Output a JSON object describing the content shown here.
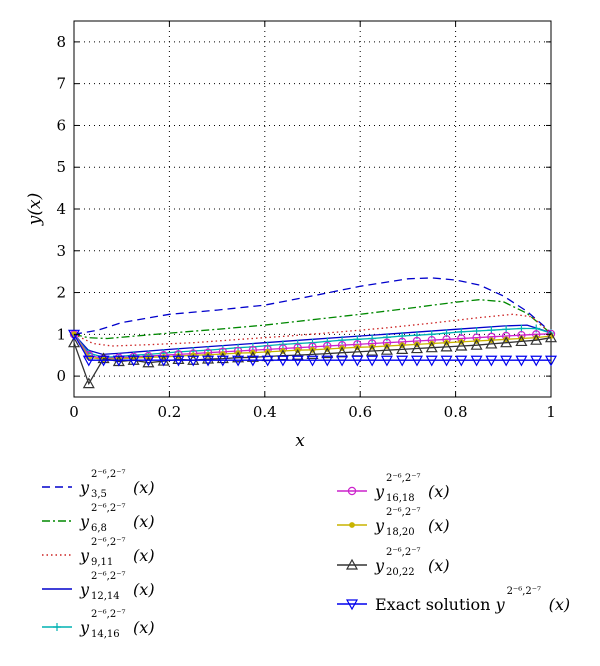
{
  "chart_data": {
    "type": "line",
    "xlabel": "x",
    "ylabel": "y(x)",
    "xlim": [
      0,
      1
    ],
    "ylim": [
      -0.5,
      8.5
    ],
    "xticks": [
      0,
      0.2,
      0.4,
      0.6,
      0.8,
      1
    ],
    "xtick_labels": [
      "0",
      "0.2",
      "0.4",
      "0.6",
      "0.8",
      "1"
    ],
    "yticks": [
      0,
      1,
      2,
      3,
      4,
      5,
      6,
      7,
      8
    ],
    "ytick_labels": [
      "0",
      "1",
      "2",
      "3",
      "4",
      "5",
      "6",
      "7",
      "8"
    ],
    "grid": true,
    "legend_position": "below",
    "series": [
      {
        "label_base": "y",
        "label_sup": "2⁻⁶,2⁻⁷",
        "label_sub": "3,5",
        "label_arg": "(x)",
        "color": "#0000cc",
        "dash": "8 5",
        "marker": "none",
        "x": [
          0,
          0.05,
          0.1,
          0.2,
          0.3,
          0.4,
          0.5,
          0.6,
          0.7,
          0.75,
          0.8,
          0.85,
          0.9,
          0.95,
          1
        ],
        "y": [
          1.0,
          1.1,
          1.28,
          1.48,
          1.58,
          1.7,
          1.92,
          2.15,
          2.33,
          2.35,
          2.3,
          2.18,
          1.92,
          1.55,
          1.05
        ]
      },
      {
        "label_base": "y",
        "label_sup": "2⁻⁶,2⁻⁷",
        "label_sub": "6,8",
        "label_arg": "(x)",
        "color": "#008800",
        "dash": "8 3 2 3",
        "marker": "none",
        "x": [
          0,
          0.03,
          0.07,
          0.12,
          0.2,
          0.3,
          0.4,
          0.5,
          0.6,
          0.7,
          0.8,
          0.85,
          0.9,
          0.95,
          1
        ],
        "y": [
          1.0,
          0.92,
          0.9,
          0.95,
          1.03,
          1.12,
          1.22,
          1.35,
          1.48,
          1.62,
          1.77,
          1.83,
          1.78,
          1.5,
          1.02
        ]
      },
      {
        "label_base": "y",
        "label_sup": "2⁻⁶,2⁻⁷",
        "label_sub": "9,11",
        "label_arg": "(x)",
        "color": "#cc2222",
        "dash": "1.5 3",
        "marker": "none",
        "x": [
          0,
          0.04,
          0.08,
          0.15,
          0.25,
          0.35,
          0.45,
          0.55,
          0.65,
          0.75,
          0.85,
          0.92,
          0.96,
          1
        ],
        "y": [
          1.0,
          0.78,
          0.72,
          0.75,
          0.8,
          0.88,
          0.96,
          1.05,
          1.15,
          1.27,
          1.4,
          1.48,
          1.42,
          1.02
        ]
      },
      {
        "label_base": "y",
        "label_sup": "2⁻⁶,2⁻⁷",
        "label_sub": "12,14",
        "label_arg": "(x)",
        "color": "#0000cc",
        "dash": "",
        "marker": "none",
        "x": [
          0,
          0.03,
          0.06,
          0.1,
          0.2,
          0.3,
          0.4,
          0.5,
          0.6,
          0.7,
          0.8,
          0.9,
          0.95,
          1
        ],
        "y": [
          1.0,
          0.62,
          0.52,
          0.55,
          0.64,
          0.72,
          0.8,
          0.88,
          0.96,
          1.04,
          1.12,
          1.2,
          1.22,
          1.04
        ]
      },
      {
        "label_base": "y",
        "label_sup": "2⁻⁶,2⁻⁷",
        "label_sub": "14,16",
        "label_arg": "(x)",
        "color": "#00b2b2",
        "dash": "",
        "marker": "plus",
        "x": [
          0,
          0.031,
          0.062,
          0.094,
          0.125,
          0.156,
          0.188,
          0.219,
          0.25,
          0.281,
          0.312,
          0.344,
          0.375,
          0.406,
          0.438,
          0.469,
          0.5,
          0.531,
          0.562,
          0.594,
          0.625,
          0.656,
          0.688,
          0.719,
          0.75,
          0.781,
          0.812,
          0.844,
          0.875,
          0.906,
          0.938,
          0.969,
          1
        ],
        "y": [
          1.0,
          0.55,
          0.45,
          0.47,
          0.5,
          0.52,
          0.55,
          0.58,
          0.6,
          0.62,
          0.65,
          0.68,
          0.7,
          0.73,
          0.76,
          0.78,
          0.8,
          0.83,
          0.86,
          0.88,
          0.9,
          0.93,
          0.96,
          0.98,
          1.0,
          1.03,
          1.06,
          1.08,
          1.1,
          1.12,
          1.14,
          1.14,
          1.03
        ]
      },
      {
        "label_base": "y",
        "label_sup": "2⁻⁶,2⁻⁷",
        "label_sub": "16,18",
        "label_arg": "(x)",
        "color": "#cc22cc",
        "dash": "",
        "marker": "circle",
        "x": [
          0,
          0.031,
          0.062,
          0.094,
          0.125,
          0.156,
          0.188,
          0.219,
          0.25,
          0.281,
          0.312,
          0.344,
          0.375,
          0.406,
          0.438,
          0.469,
          0.5,
          0.531,
          0.562,
          0.594,
          0.625,
          0.656,
          0.688,
          0.719,
          0.75,
          0.781,
          0.812,
          0.844,
          0.875,
          0.906,
          0.938,
          0.969,
          1
        ],
        "y": [
          1.0,
          0.5,
          0.42,
          0.44,
          0.46,
          0.48,
          0.5,
          0.52,
          0.54,
          0.56,
          0.58,
          0.6,
          0.62,
          0.64,
          0.66,
          0.68,
          0.7,
          0.72,
          0.74,
          0.76,
          0.78,
          0.8,
          0.82,
          0.84,
          0.86,
          0.88,
          0.9,
          0.92,
          0.94,
          0.96,
          0.98,
          1.0,
          1.01
        ]
      },
      {
        "label_base": "y",
        "label_sup": "2⁻⁶,2⁻⁷",
        "label_sub": "18,20",
        "label_arg": "(x)",
        "color": "#c8b400",
        "dash": "",
        "marker": "dot",
        "x": [
          0,
          0.031,
          0.062,
          0.094,
          0.125,
          0.156,
          0.188,
          0.219,
          0.25,
          0.281,
          0.312,
          0.344,
          0.375,
          0.406,
          0.438,
          0.469,
          0.5,
          0.531,
          0.562,
          0.594,
          0.625,
          0.656,
          0.688,
          0.719,
          0.75,
          0.781,
          0.812,
          0.844,
          0.875,
          0.906,
          0.938,
          0.969,
          1
        ],
        "y": [
          1.0,
          0.45,
          0.4,
          0.42,
          0.43,
          0.45,
          0.46,
          0.48,
          0.5,
          0.51,
          0.53,
          0.55,
          0.56,
          0.58,
          0.6,
          0.62,
          0.63,
          0.65,
          0.67,
          0.69,
          0.7,
          0.72,
          0.74,
          0.76,
          0.78,
          0.8,
          0.82,
          0.84,
          0.86,
          0.88,
          0.9,
          0.92,
          0.96
        ]
      },
      {
        "label_base": "y",
        "label_sup": "2⁻⁶,2⁻⁷",
        "label_sub": "20,22",
        "label_arg": "(x)",
        "color": "#333333",
        "dash": "",
        "marker": "triangle",
        "x": [
          0,
          0.031,
          0.062,
          0.094,
          0.125,
          0.156,
          0.188,
          0.219,
          0.25,
          0.281,
          0.312,
          0.344,
          0.375,
          0.406,
          0.438,
          0.469,
          0.5,
          0.531,
          0.562,
          0.594,
          0.625,
          0.656,
          0.688,
          0.719,
          0.75,
          0.781,
          0.812,
          0.844,
          0.875,
          0.906,
          0.938,
          0.969,
          1
        ],
        "y": [
          0.8,
          -0.18,
          0.42,
          0.35,
          0.38,
          0.32,
          0.36,
          0.4,
          0.38,
          0.41,
          0.42,
          0.44,
          0.45,
          0.47,
          0.49,
          0.5,
          0.52,
          0.54,
          0.56,
          0.58,
          0.6,
          0.62,
          0.64,
          0.66,
          0.68,
          0.7,
          0.72,
          0.74,
          0.77,
          0.8,
          0.83,
          0.86,
          0.92
        ]
      },
      {
        "label_base": "y",
        "label_sup": "2⁻⁶,2⁻⁷",
        "label_sub": "",
        "label_arg": "(x)",
        "label_prefix": "Exact solution ",
        "color": "#0000ee",
        "dash": "",
        "marker": "triangle-down",
        "x": [
          0,
          0.031,
          0.062,
          0.094,
          0.125,
          0.156,
          0.188,
          0.219,
          0.25,
          0.281,
          0.312,
          0.344,
          0.375,
          0.406,
          0.438,
          0.469,
          0.5,
          0.531,
          0.562,
          0.594,
          0.625,
          0.656,
          0.688,
          0.719,
          0.75,
          0.781,
          0.812,
          0.844,
          0.875,
          0.906,
          0.938,
          0.969,
          1
        ],
        "y": [
          1.0,
          0.38,
          0.38,
          0.38,
          0.38,
          0.38,
          0.38,
          0.38,
          0.38,
          0.38,
          0.38,
          0.38,
          0.38,
          0.38,
          0.38,
          0.38,
          0.38,
          0.38,
          0.38,
          0.38,
          0.38,
          0.38,
          0.38,
          0.38,
          0.38,
          0.38,
          0.38,
          0.38,
          0.38,
          0.38,
          0.38,
          0.38,
          0.38
        ]
      }
    ]
  }
}
